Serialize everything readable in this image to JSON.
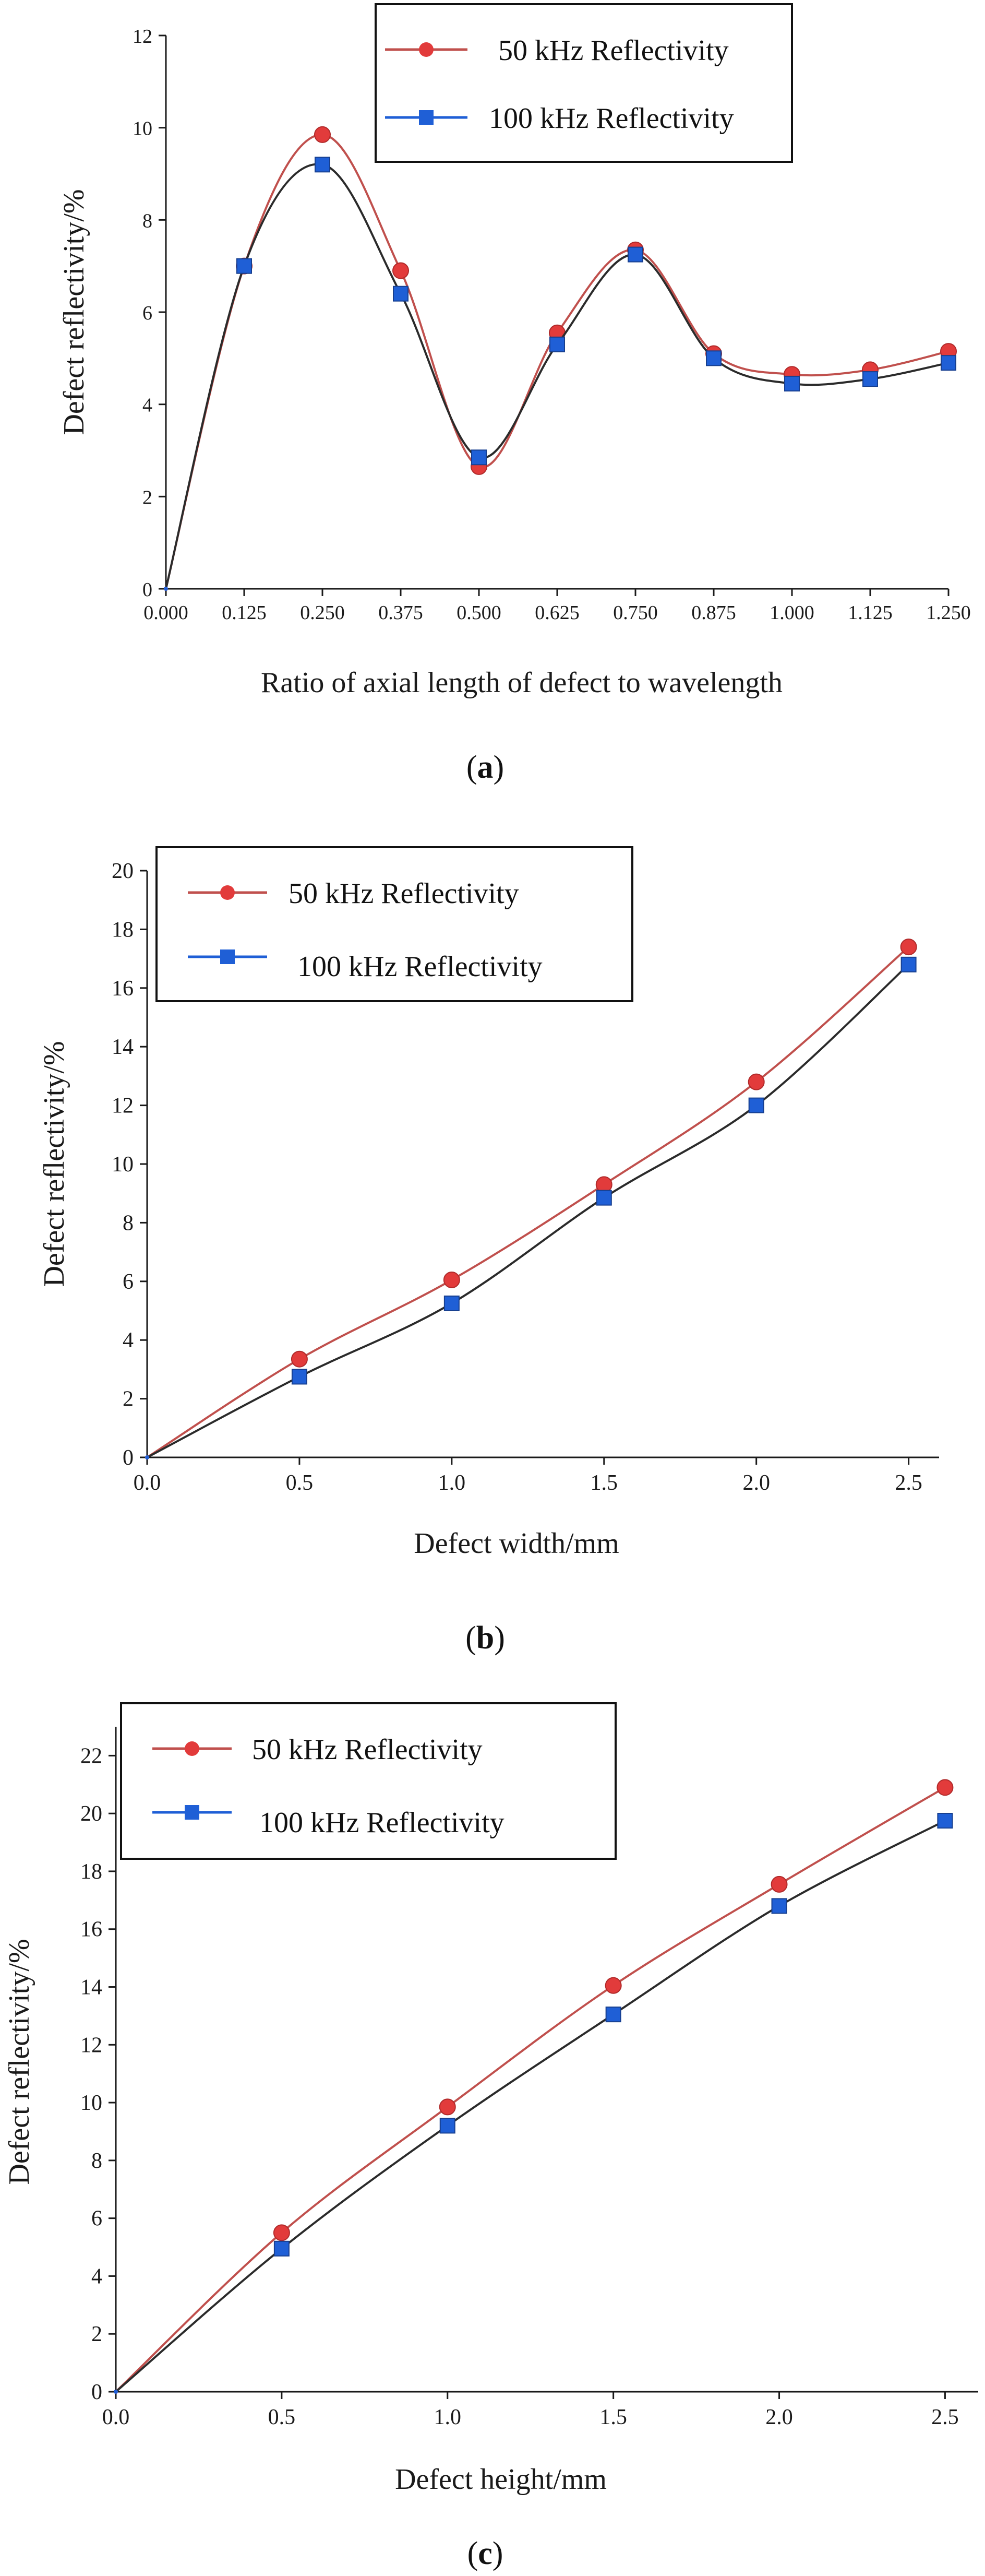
{
  "figure": {
    "colors": {
      "s50": "#e23b3b",
      "s50_line": "#c0504d",
      "s100": "#1f5fd6",
      "s100_line": "#2b2b2b",
      "axis": "#1a1a1a"
    }
  },
  "chart_data": [
    {
      "type": "line",
      "panel": "a",
      "caption": {
        "open": "(",
        "label": "a",
        "close": ")"
      },
      "xlabel": "Ratio of axial length of defect to wavelength",
      "ylabel": "Defect reflectivity/%",
      "xlim": [
        0,
        1.25
      ],
      "ylim": [
        0,
        12
      ],
      "xticks": [
        0,
        0.125,
        0.25,
        0.375,
        0.5,
        0.625,
        0.75,
        0.875,
        1.0,
        1.125,
        1.25
      ],
      "xtick_labels": [
        "0.000",
        "0.125",
        "0.250",
        "0.375",
        "0.500",
        "0.625",
        "0.750",
        "0.875",
        "1.000",
        "1.125",
        "1.250"
      ],
      "yticks": [
        0,
        2,
        4,
        6,
        8,
        10,
        12
      ],
      "ytick_labels": [
        "0",
        "2",
        "4",
        "6",
        "8",
        "10",
        "12"
      ],
      "x": [
        0,
        0.125,
        0.25,
        0.375,
        0.5,
        0.625,
        0.75,
        0.875,
        1.0,
        1.125,
        1.25
      ],
      "series": [
        {
          "name": "50 kHz Reflectivity",
          "marker": "circle",
          "values": [
            0,
            7.0,
            9.85,
            6.9,
            2.65,
            5.55,
            7.35,
            5.1,
            4.65,
            4.75,
            5.15
          ]
        },
        {
          "name": "100 kHz Reflectivity",
          "marker": "square",
          "values": [
            0,
            7.0,
            9.2,
            6.4,
            2.85,
            5.3,
            7.25,
            5.0,
            4.45,
            4.55,
            4.9
          ]
        }
      ],
      "legend_position": "top-right"
    },
    {
      "type": "line",
      "panel": "b",
      "caption": {
        "open": "(",
        "label": "b",
        "close": ")"
      },
      "xlabel": "Defect width/mm",
      "ylabel": "Defect reflectivity/%",
      "xlim": [
        0,
        2.6
      ],
      "ylim": [
        0,
        20
      ],
      "xticks": [
        0,
        0.5,
        1.0,
        1.5,
        2.0,
        2.5
      ],
      "xtick_labels": [
        "0.0",
        "0.5",
        "1.0",
        "1.5",
        "2.0",
        "2.5"
      ],
      "yticks": [
        0,
        2,
        4,
        6,
        8,
        10,
        12,
        14,
        16,
        18,
        20
      ],
      "ytick_labels": [
        "0",
        "2",
        "4",
        "6",
        "8",
        "10",
        "12",
        "14",
        "16",
        "18",
        "20"
      ],
      "x": [
        0,
        0.5,
        1.0,
        1.5,
        2.0,
        2.5
      ],
      "series": [
        {
          "name": "50 kHz Reflectivity",
          "marker": "circle",
          "values": [
            0,
            3.35,
            6.05,
            9.3,
            12.8,
            17.4
          ]
        },
        {
          "name": "100 kHz Reflectivity",
          "marker": "square",
          "values": [
            0,
            2.75,
            5.25,
            8.85,
            12.0,
            16.8
          ]
        }
      ],
      "legend_position": "top-left"
    },
    {
      "type": "line",
      "panel": "c",
      "caption": {
        "open": "(",
        "label": "c",
        "close": ")"
      },
      "xlabel": "Defect height/mm",
      "ylabel": "Defect reflectivity/%",
      "xlim": [
        0,
        2.6
      ],
      "ylim": [
        0,
        23
      ],
      "xticks": [
        0,
        0.5,
        1.0,
        1.5,
        2.0,
        2.5
      ],
      "xtick_labels": [
        "0.0",
        "0.5",
        "1.0",
        "1.5",
        "2.0",
        "2.5"
      ],
      "yticks": [
        0,
        2,
        4,
        6,
        8,
        10,
        12,
        14,
        16,
        18,
        20,
        22
      ],
      "ytick_labels": [
        "0",
        "2",
        "4",
        "6",
        "8",
        "10",
        "12",
        "14",
        "16",
        "18",
        "20",
        "22"
      ],
      "x": [
        0,
        0.5,
        1.0,
        1.5,
        2.0,
        2.5
      ],
      "series": [
        {
          "name": "50 kHz Reflectivity",
          "marker": "circle",
          "values": [
            0,
            5.5,
            9.85,
            14.05,
            17.55,
            20.9
          ]
        },
        {
          "name": "100 kHz Reflectivity",
          "marker": "square",
          "values": [
            0,
            4.95,
            9.2,
            13.05,
            16.8,
            19.75
          ]
        }
      ],
      "legend_position": "top-left"
    }
  ]
}
